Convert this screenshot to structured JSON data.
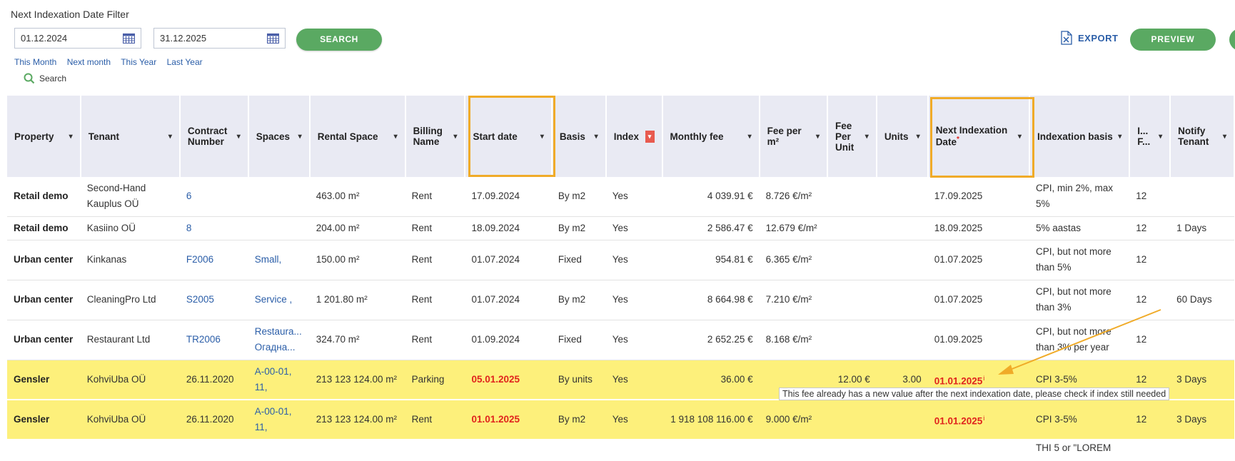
{
  "filter": {
    "title": "Next Indexation Date Filter",
    "date_from": "01.12.2024",
    "date_to": "31.12.2025",
    "search_button": "SEARCH",
    "quick_links": [
      "This Month",
      "Next month",
      "This Year",
      "Last Year"
    ],
    "search_link": "Search"
  },
  "toolbar": {
    "export_label": "EXPORT",
    "preview_label": "PREVIEW"
  },
  "table": {
    "headers": [
      {
        "label": "Property"
      },
      {
        "label": "Tenant"
      },
      {
        "label": "Contract Number"
      },
      {
        "label": "Spaces"
      },
      {
        "label": "Rental Space"
      },
      {
        "label": "Billing Name"
      },
      {
        "label": "Start date"
      },
      {
        "label": "Basis"
      },
      {
        "label": "Index"
      },
      {
        "label": "Monthly fee"
      },
      {
        "label": "Fee per m²"
      },
      {
        "label": "Fee Per Unit"
      },
      {
        "label": "Units"
      },
      {
        "label": "Next Indexation Date"
      },
      {
        "label": "Indexation basis"
      },
      {
        "label": "I... F..."
      },
      {
        "label": "Notify Tenant"
      }
    ],
    "rows": [
      {
        "property": "Retail demo",
        "tenant": "Second-Hand Kauplus OÜ",
        "contract": "6",
        "spaces": "",
        "rental_space": "463.00 m²",
        "billing": "Rent",
        "start": "17.09.2024",
        "basis": "By m2",
        "index": "Yes",
        "monthly": "4 039.91 €",
        "fee_m2": "8.726 €/m²",
        "fee_unit": "",
        "units": "",
        "next": "17.09.2025",
        "idx_basis": "CPI, min 2%, max 5%",
        "if": "12",
        "notify": ""
      },
      {
        "property": "Retail demo",
        "tenant": "Kasiino OÜ",
        "contract": "8",
        "spaces": "",
        "rental_space": "204.00 m²",
        "billing": "Rent",
        "start": "18.09.2024",
        "basis": "By m2",
        "index": "Yes",
        "monthly": "2 586.47 €",
        "fee_m2": "12.679 €/m²",
        "fee_unit": "",
        "units": "",
        "next": "18.09.2025",
        "idx_basis": "5% aastas",
        "if": "12",
        "notify": "1 Days"
      },
      {
        "property": "Urban center",
        "tenant": "Kinkanas",
        "contract": "F2006",
        "spaces": "Small,",
        "rental_space": "150.00 m²",
        "billing": "Rent",
        "start": "01.07.2024",
        "basis": "Fixed",
        "index": "Yes",
        "monthly": "954.81 €",
        "fee_m2": "6.365 €/m²",
        "fee_unit": "",
        "units": "",
        "next": "01.07.2025",
        "idx_basis": "CPI, but not more than 5%",
        "if": "12",
        "notify": ""
      },
      {
        "property": "Urban center",
        "tenant": "CleaningPro Ltd",
        "contract": "S2005",
        "spaces": "Service ,",
        "rental_space": "1 201.80 m²",
        "billing": "Rent",
        "start": "01.07.2024",
        "basis": "By m2",
        "index": "Yes",
        "monthly": "8 664.98 €",
        "fee_m2": "7.210 €/m²",
        "fee_unit": "",
        "units": "",
        "next": "01.07.2025",
        "idx_basis": "CPI, but not more than 3%",
        "if": "12",
        "notify": "60 Days"
      },
      {
        "property": "Urban center",
        "tenant": "Restaurant Ltd",
        "contract": "TR2006",
        "spaces": "Restaura... Огадна...",
        "rental_space": "324.70 m²",
        "billing": "Rent",
        "start": "01.09.2024",
        "basis": "Fixed",
        "index": "Yes",
        "monthly": "2 652.25 €",
        "fee_m2": "8.168 €/m²",
        "fee_unit": "",
        "units": "",
        "next": "01.09.2025",
        "idx_basis": "CPI, but not more than 3% per year",
        "if": "12",
        "notify": ""
      },
      {
        "property": "Gensler",
        "tenant": "KohviUba OÜ",
        "contract": "26.11.2020",
        "spaces": "A-00-01, 11,",
        "rental_space": "213 123 124.00 m²",
        "billing": "Parking",
        "start": "05.01.2025",
        "basis": "By units",
        "index": "Yes",
        "monthly": "36.00 €",
        "fee_m2": "",
        "fee_unit": "12.00 €",
        "units": "3.00",
        "next": "01.01.2025",
        "idx_basis": "CPI 3-5%",
        "if": "12",
        "notify": "3 Days"
      },
      {
        "property": "Gensler",
        "tenant": "KohviUba OÜ",
        "contract": "26.11.2020",
        "spaces": "A-00-01, 11,",
        "rental_space": "213 123 124.00 m²",
        "billing": "Rent",
        "start": "01.01.2025",
        "basis": "By m2",
        "index": "Yes",
        "monthly": "1 918 108 116.00 €",
        "fee_m2": "9.000 €/m²",
        "fee_unit": "",
        "units": "",
        "next": "01.01.2025",
        "idx_basis": "CPI 3-5%",
        "if": "12",
        "notify": "3 Days"
      }
    ],
    "partial_row_text": "THI 5 or \"LOREM"
  },
  "tooltip": "This fee already has a new value after the next indexation date, please check if index still needed",
  "colors": {
    "accent_green": "#5aa962",
    "link_blue": "#2b5ea8",
    "highlight_yellow": "#fdf07b",
    "annotation_orange": "#f0ab28",
    "alert_red": "#e0231d",
    "header_bg": "#e9eaf3"
  }
}
